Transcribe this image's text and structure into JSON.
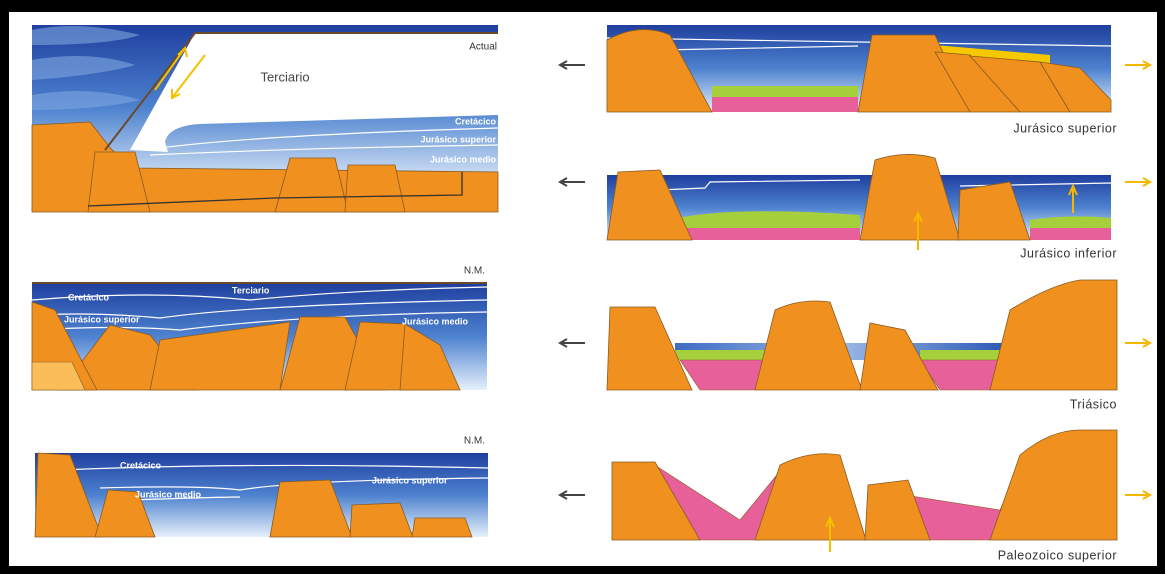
{
  "left_panels": [
    {
      "labels": [
        "Actual",
        "Terciario",
        "Cretácico",
        "Jurásico superior",
        "Jurásico medio"
      ]
    },
    {
      "labels": [
        "N.M.",
        "Cretácico",
        "Terciario",
        "Jurásico superior",
        "Jurásico medio"
      ]
    },
    {
      "labels": [
        "N.M.",
        "Cretácico",
        "Jurásico medio",
        "Jurásico superior"
      ]
    }
  ],
  "right_panels": [
    {
      "caption": "Jurásico superior"
    },
    {
      "caption": "Jurásico inferior"
    },
    {
      "caption": "Triásico"
    },
    {
      "caption": "Paleozoico superior"
    }
  ]
}
